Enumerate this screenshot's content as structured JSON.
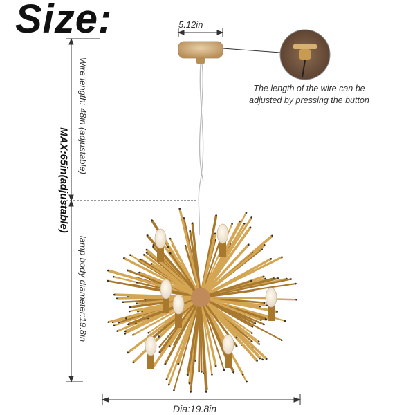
{
  "title": "Size:",
  "canopy_width": "5.12in",
  "note": "The length of the wire can be adjusted by pressing the button",
  "wire_length": "Wire length: 48in (adjustable)",
  "max_length": "MAX:65in(adjustable)",
  "body_diameter_vertical": "lamp body diameter:19.8in",
  "diameter": "Dia:19.8in",
  "colors": {
    "gold": "#d4a552",
    "gold_dark": "#a8782e",
    "line": "#333333",
    "canopy": "#c9a06a"
  }
}
